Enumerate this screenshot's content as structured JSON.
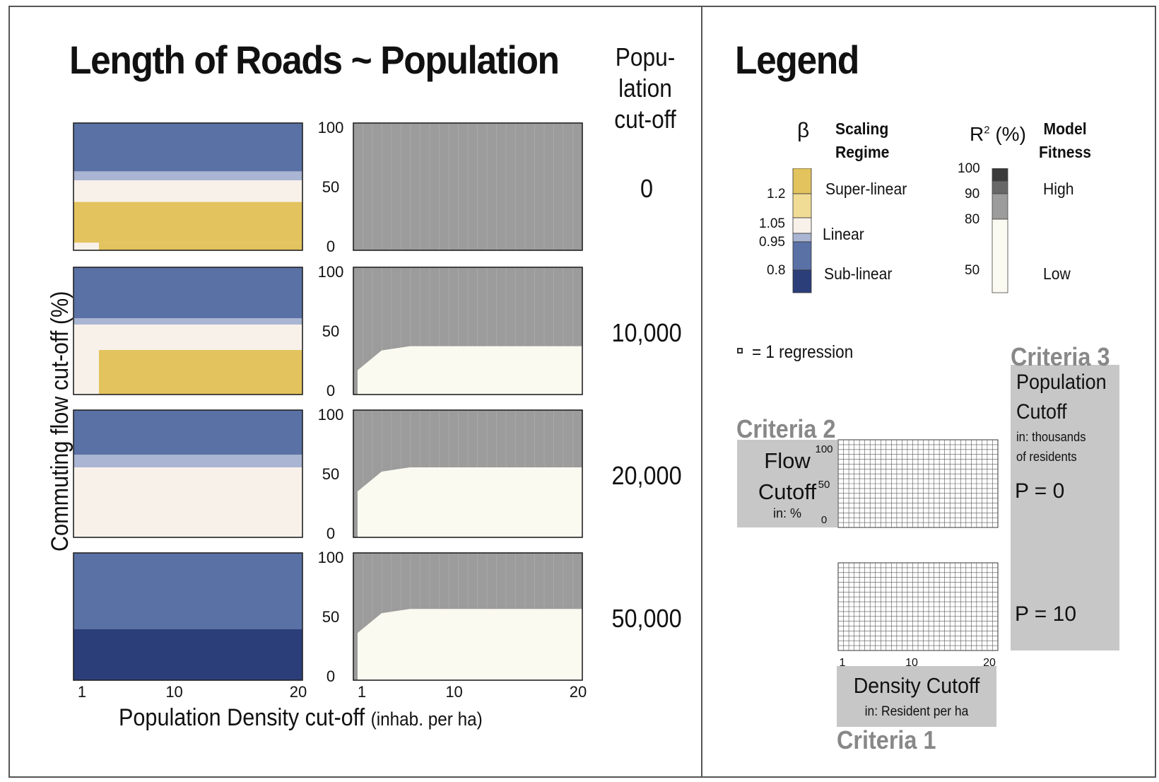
{
  "chart_data": [
    {
      "type": "heatmap",
      "title": "Length of Roads ~ Population",
      "xlabel": "Population Density cut-off (inhab. per ha)",
      "ylabel": "Commuting flow cut-off (%)",
      "x_range": [
        1,
        20
      ],
      "y_range": [
        0,
        100
      ],
      "x_ticks": [
        "1",
        "10",
        "20"
      ],
      "y_ticks": [
        "100",
        "50",
        "0"
      ],
      "facet_label": "Popu-lation cut-off",
      "facets": [
        "0",
        "10,000",
        "20,000",
        "50,000"
      ],
      "panels": [
        {
          "name": "beta",
          "colormap": "scaling-regime",
          "rows": [
            {
              "population_cutoff": "0",
              "bands": [
                {
                  "from": 0,
                  "to": 6,
                  "beta": "super-linear"
                },
                {
                  "from": 6,
                  "to": 38,
                  "beta": "super-linear"
                },
                {
                  "from": 38,
                  "to": 55,
                  "beta": "linear"
                },
                {
                  "from": 55,
                  "to": 62,
                  "beta": "sub-linear-light"
                },
                {
                  "from": 62,
                  "to": 100,
                  "beta": "sub-linear"
                }
              ]
            },
            {
              "population_cutoff": "10,000",
              "bands": [
                {
                  "from": 0,
                  "to": 35,
                  "beta": "super-linear"
                },
                {
                  "from": 35,
                  "to": 55,
                  "beta": "linear"
                },
                {
                  "from": 55,
                  "to": 60,
                  "beta": "sub-linear-light"
                },
                {
                  "from": 60,
                  "to": 100,
                  "beta": "sub-linear"
                }
              ]
            },
            {
              "population_cutoff": "20,000",
              "bands": [
                {
                  "from": 0,
                  "to": 55,
                  "beta": "linear"
                },
                {
                  "from": 55,
                  "to": 65,
                  "beta": "sub-linear-light"
                },
                {
                  "from": 65,
                  "to": 100,
                  "beta": "sub-linear"
                }
              ]
            },
            {
              "population_cutoff": "50,000",
              "bands": [
                {
                  "from": 0,
                  "to": 40,
                  "beta": "sub-linear-dark"
                },
                {
                  "from": 40,
                  "to": 100,
                  "beta": "sub-linear"
                }
              ]
            }
          ]
        },
        {
          "name": "r2",
          "colormap": "model-fitness",
          "rows": [
            {
              "population_cutoff": "0",
              "r2": "medium-high",
              "low_region_top": 0
            },
            {
              "population_cutoff": "10,000",
              "r2": "medium-high",
              "low_region_top": 38
            },
            {
              "population_cutoff": "20,000",
              "r2": "medium-high",
              "low_region_top": 55
            },
            {
              "population_cutoff": "50,000",
              "r2": "medium-high",
              "low_region_top": 56
            }
          ]
        }
      ]
    }
  ],
  "title": "Length of Roads ~ Population",
  "axes": {
    "ylabel": "Commuting flow cut-off (%)",
    "xlabel_main": "Population Density cut-off",
    "xlabel_unit": "(inhab. per ha)",
    "y_ticks": [
      "100",
      "50",
      "0"
    ],
    "x_ticks": [
      "1",
      "10",
      "20"
    ]
  },
  "population": {
    "header_line1": "Popu-",
    "header_line2": "lation",
    "header_line3": "cut-off",
    "values": [
      "0",
      "10,000",
      "20,000",
      "50,000"
    ]
  },
  "legend": {
    "title": "Legend",
    "beta_symbol": "β",
    "scaling_regime_line1": "Scaling",
    "scaling_regime_line2": "Regime",
    "beta_ticks": [
      "1.2",
      "1.05",
      "0.95",
      "0.8"
    ],
    "super_linear": "Super-linear",
    "linear": "Linear",
    "sub_linear": "Sub-linear",
    "r2_label": "R",
    "r2_sup": "2",
    "r2_unit": " (%)",
    "model_fitness_line1": "Model",
    "model_fitness_line2": "Fitness",
    "r2_ticks": [
      "100",
      "90",
      "80",
      "50"
    ],
    "high": "High",
    "low": "Low",
    "regression_note": "= 1 regression",
    "criteria_2": "Criteria 2",
    "flow_line1": "Flow",
    "flow_line2": "Cutoff",
    "flow_unit": "in: %",
    "mini_y_ticks": [
      "100",
      "50",
      "0"
    ],
    "mini_x_ticks": [
      "1",
      "10",
      "20"
    ],
    "criteria_3": "Criteria 3",
    "pop_line1": "Population",
    "pop_line2": "Cutoff",
    "pop_unit_line1": "in: thousands",
    "pop_unit_line2": "of residents",
    "p0": "P = 0",
    "p10": "P = 10",
    "density_cutoff": "Density Cutoff",
    "density_unit": "in: Resident per ha",
    "criteria_1": "Criteria 1"
  },
  "colors": {
    "sub_linear_dark": "#2c3e7a",
    "sub_linear": "#5a71a6",
    "sub_linear_light": "#a9b5d2",
    "linear": "#f8f1ea",
    "super_linear_light": "#f1dc96",
    "super_linear": "#e3c35e",
    "r2_low": "#fbfaf0",
    "r2_mid": "#9c9c9c",
    "r2_high": "#3b3b3b",
    "gray_box": "#c7c7c7",
    "criteria_text": "#888888"
  }
}
